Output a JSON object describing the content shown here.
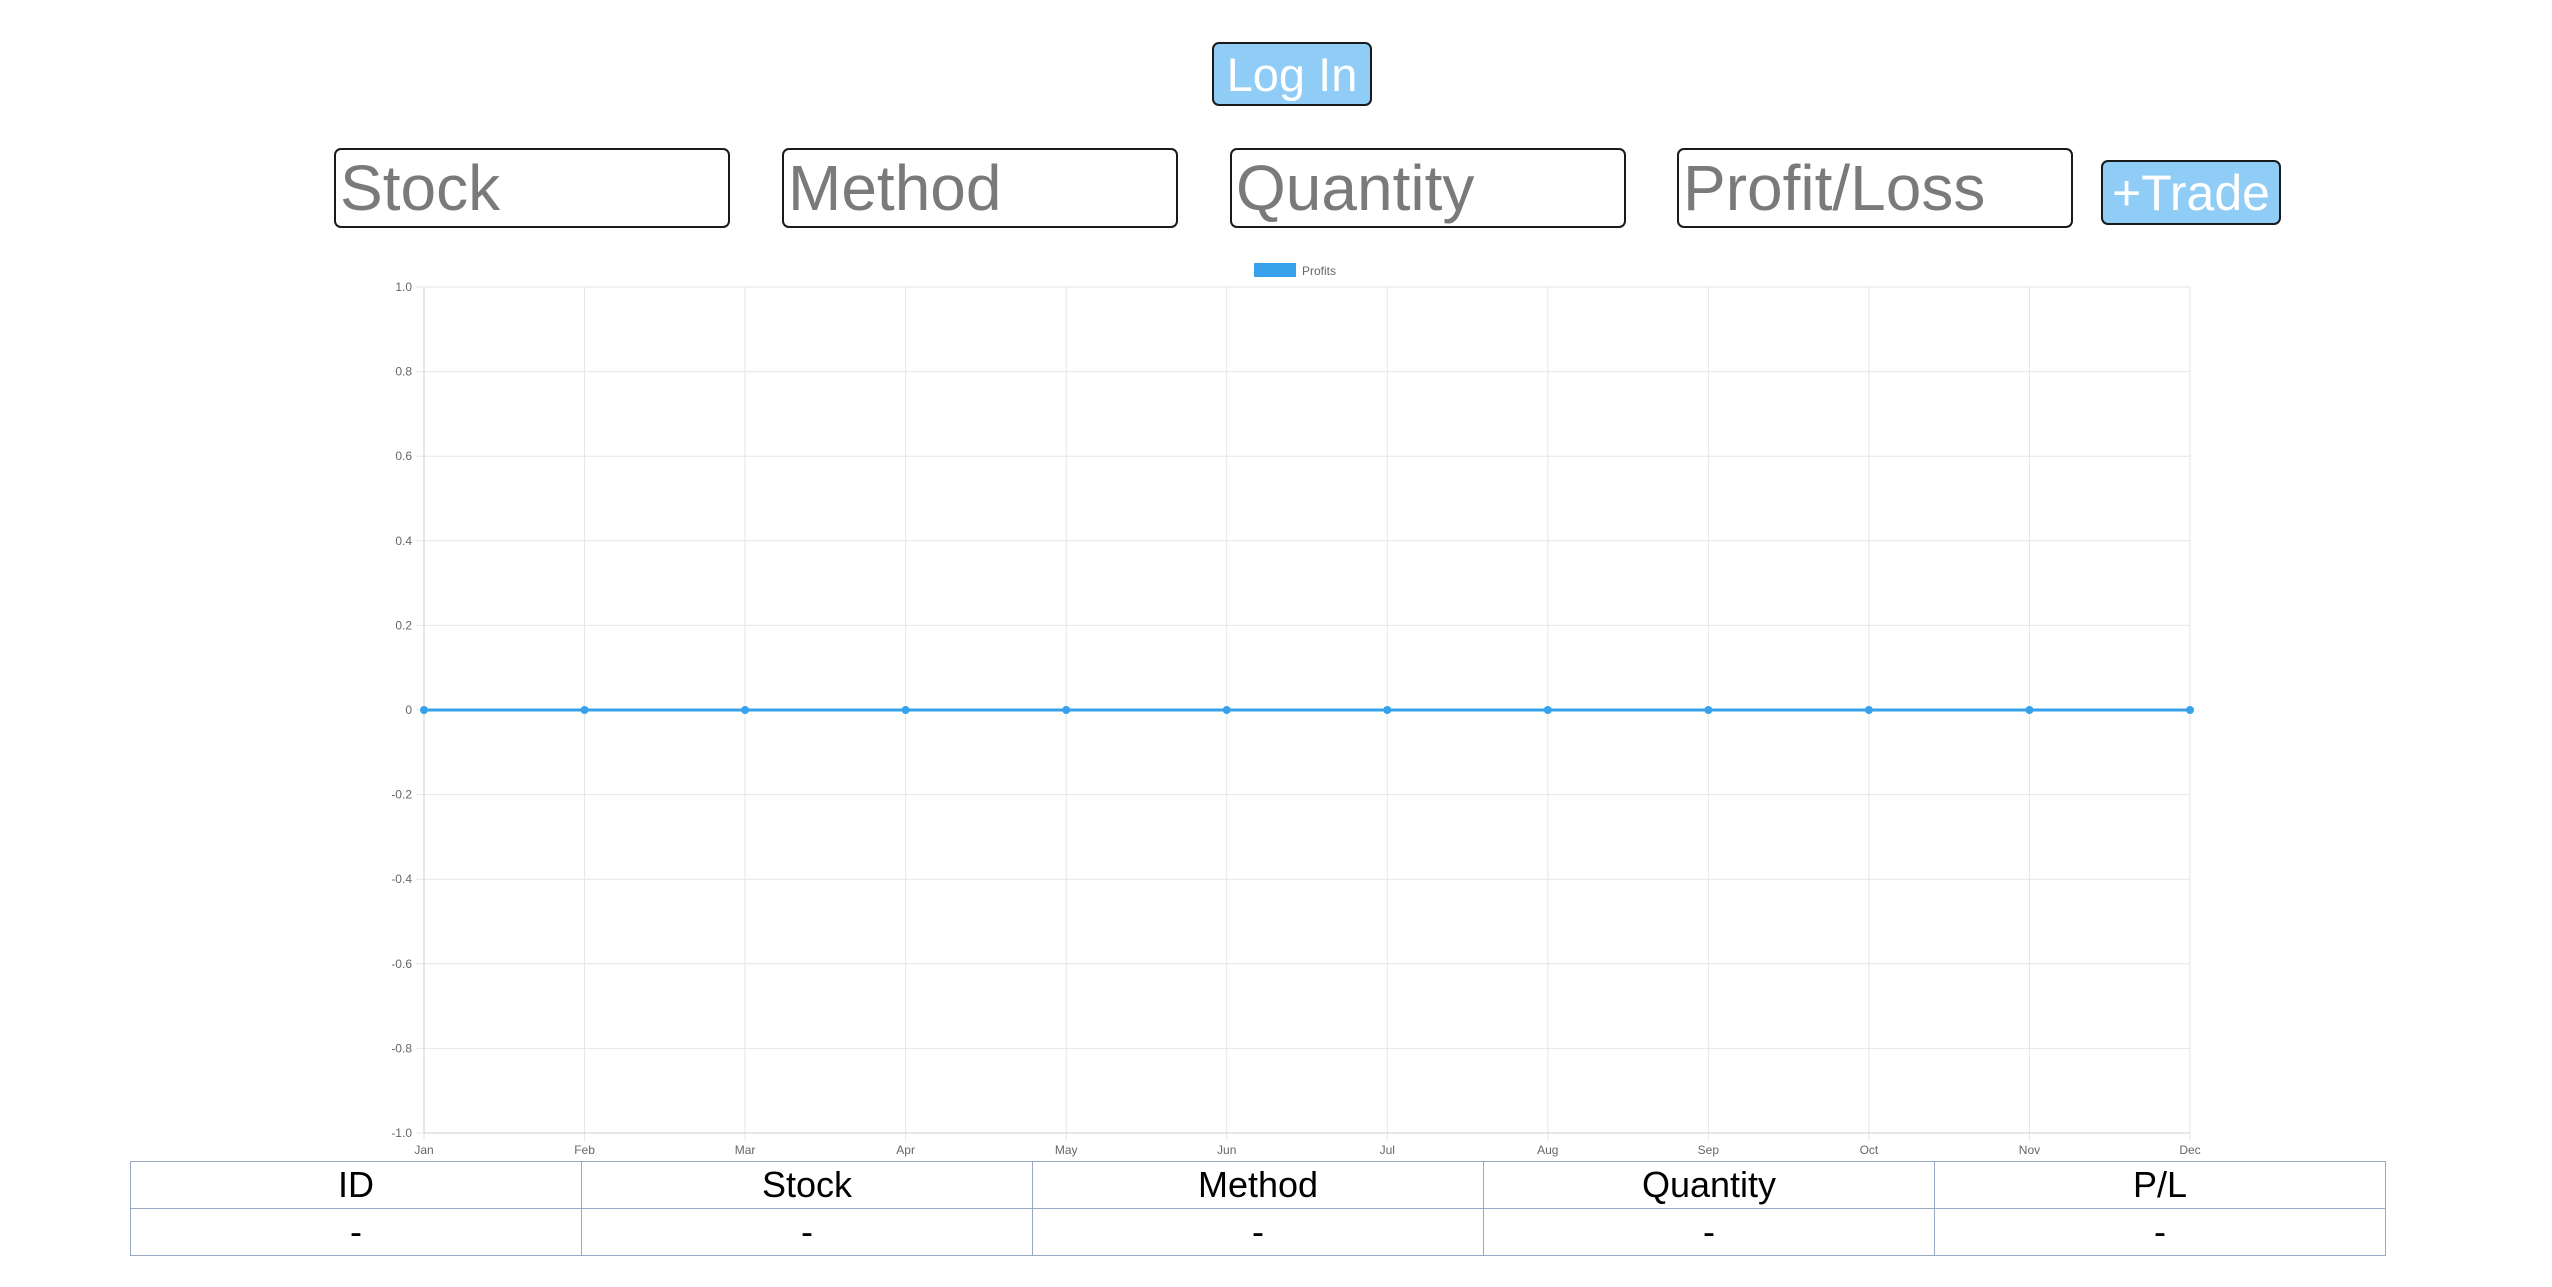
{
  "header": {
    "login_label": "Log In"
  },
  "trade_form": {
    "stock_placeholder": "Stock",
    "method_placeholder": "Method",
    "quantity_placeholder": "Quantity",
    "profit_loss_placeholder": "Profit/Loss",
    "add_trade_label": "+Trade"
  },
  "colors": {
    "button_bg": "#8fcdf7",
    "series_line": "#36a2eb",
    "grid": "#e6e6e6",
    "table_border": "#9aa8c7"
  },
  "chart_data": {
    "type": "line",
    "categories": [
      "Jan",
      "Feb",
      "Mar",
      "Apr",
      "May",
      "Jun",
      "Jul",
      "Aug",
      "Sep",
      "Oct",
      "Nov",
      "Dec"
    ],
    "series": [
      {
        "name": "Profits",
        "values": [
          0,
          0,
          0,
          0,
          0,
          0,
          0,
          0,
          0,
          0,
          0,
          0
        ],
        "color": "#36a2eb"
      }
    ],
    "ylim": [
      -1.0,
      1.0
    ],
    "yticks": [
      "1.0",
      "0.8",
      "0.6",
      "0.4",
      "0.2",
      "0",
      "-0.2",
      "-0.4",
      "-0.6",
      "-0.8",
      "-1.0"
    ],
    "grid": true,
    "legend": "top-center"
  },
  "table": {
    "headers": [
      "ID",
      "Stock",
      "Method",
      "Quantity",
      "P/L"
    ],
    "rows": [
      [
        "-",
        "-",
        "-",
        "-",
        "-"
      ]
    ]
  }
}
